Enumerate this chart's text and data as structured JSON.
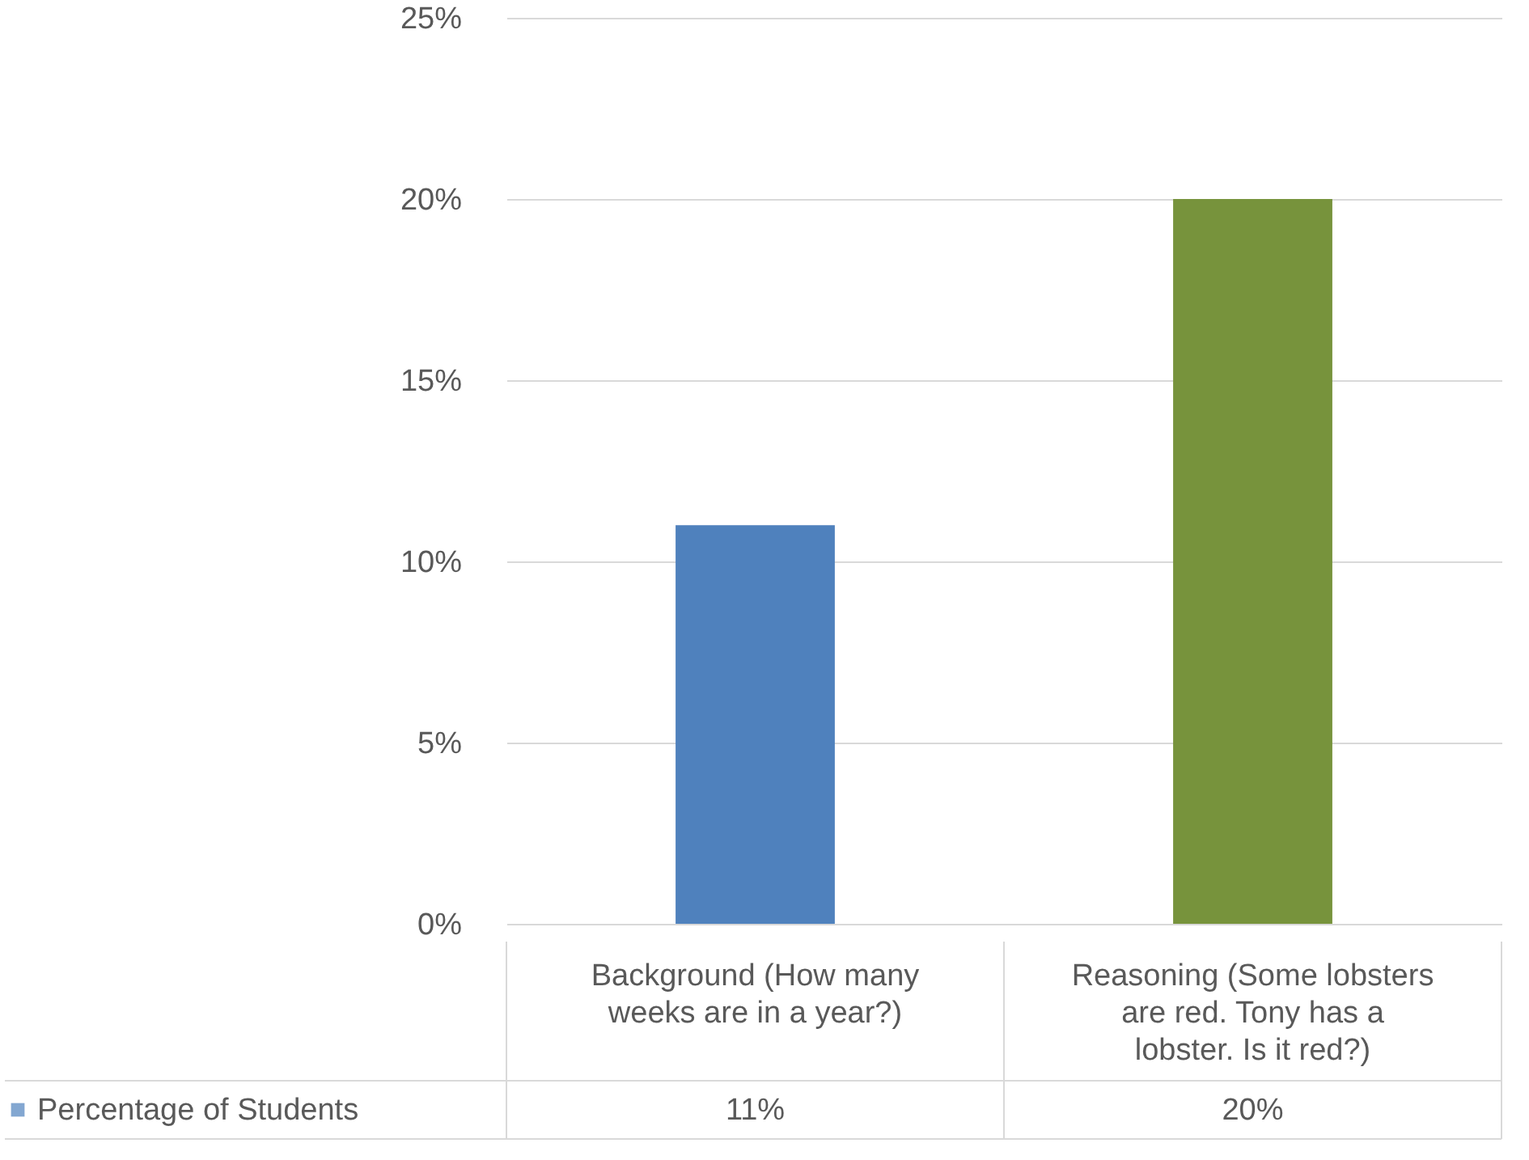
{
  "chart_data": {
    "type": "bar",
    "categories": [
      "Background (How many weeks are in a year?)",
      "Reasoning (Some lobsters are red.  Tony has a lobster.  Is it red?)"
    ],
    "series": [
      {
        "name": "Percentage of Students",
        "colors": [
          "#4f81bd",
          "#77933c"
        ],
        "values": [
          11,
          20
        ],
        "value_labels": [
          "11%",
          "20%"
        ]
      }
    ],
    "ylim": [
      0,
      25
    ],
    "yticks": [
      {
        "value": 0,
        "label": "0%"
      },
      {
        "value": 5,
        "label": "5%"
      },
      {
        "value": 10,
        "label": "10%"
      },
      {
        "value": 15,
        "label": "15%"
      },
      {
        "value": 20,
        "label": "20%"
      },
      {
        "value": 25,
        "label": "25%"
      }
    ],
    "grid": "y",
    "legend": "bottom left"
  }
}
